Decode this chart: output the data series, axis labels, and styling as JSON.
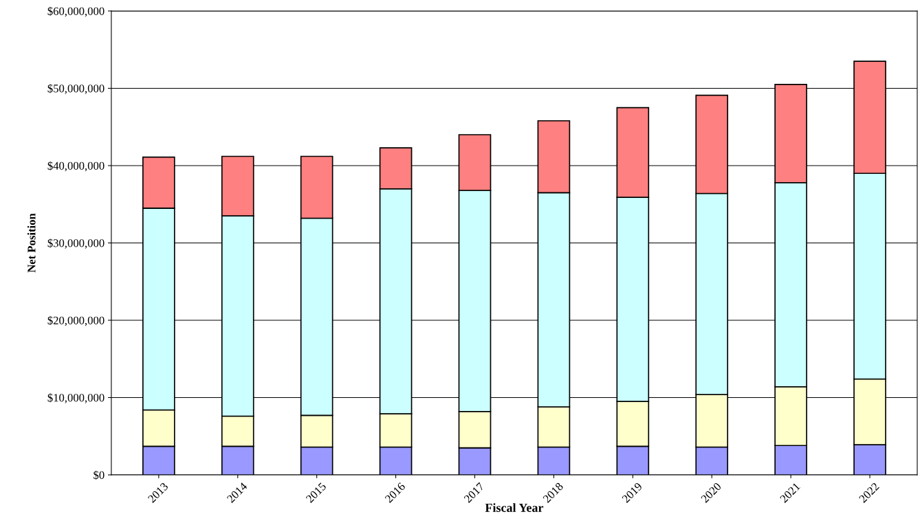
{
  "chart_data": {
    "type": "bar",
    "stacked": true,
    "xlabel": "Fiscal Year",
    "ylabel": "Net Position",
    "categories": [
      "2013",
      "2014",
      "2015",
      "2016",
      "2017",
      "2018",
      "2019",
      "2020",
      "2021",
      "2022"
    ],
    "series": [
      {
        "color": "#9999ff",
        "values": [
          3700000,
          3700000,
          3600000,
          3600000,
          3500000,
          3600000,
          3700000,
          3600000,
          3800000,
          3900000
        ]
      },
      {
        "color": "#ffffcc",
        "values": [
          4700000,
          3900000,
          4100000,
          4300000,
          4700000,
          5200000,
          5800000,
          6800000,
          7600000,
          8500000
        ]
      },
      {
        "color": "#ccffff",
        "values": [
          26100000,
          25900000,
          25500000,
          29100000,
          28600000,
          27700000,
          26400000,
          26000000,
          26400000,
          26600000
        ]
      },
      {
        "color": "#ff8080",
        "values": [
          6600000,
          7700000,
          8000000,
          5300000,
          7200000,
          9300000,
          11600000,
          12700000,
          12700000,
          14500000
        ]
      }
    ],
    "ylim": [
      0,
      60000000
    ],
    "yticks": [
      {
        "value": 0,
        "label": "$0"
      },
      {
        "value": 10000000,
        "label": "$10,000,000"
      },
      {
        "value": 20000000,
        "label": "$20,000,000"
      },
      {
        "value": 30000000,
        "label": "$30,000,000"
      },
      {
        "value": 40000000,
        "label": "$40,000,000"
      },
      {
        "value": 50000000,
        "label": "$50,000,000"
      },
      {
        "value": 60000000,
        "label": "$60,000,000"
      }
    ],
    "grid": "y"
  }
}
